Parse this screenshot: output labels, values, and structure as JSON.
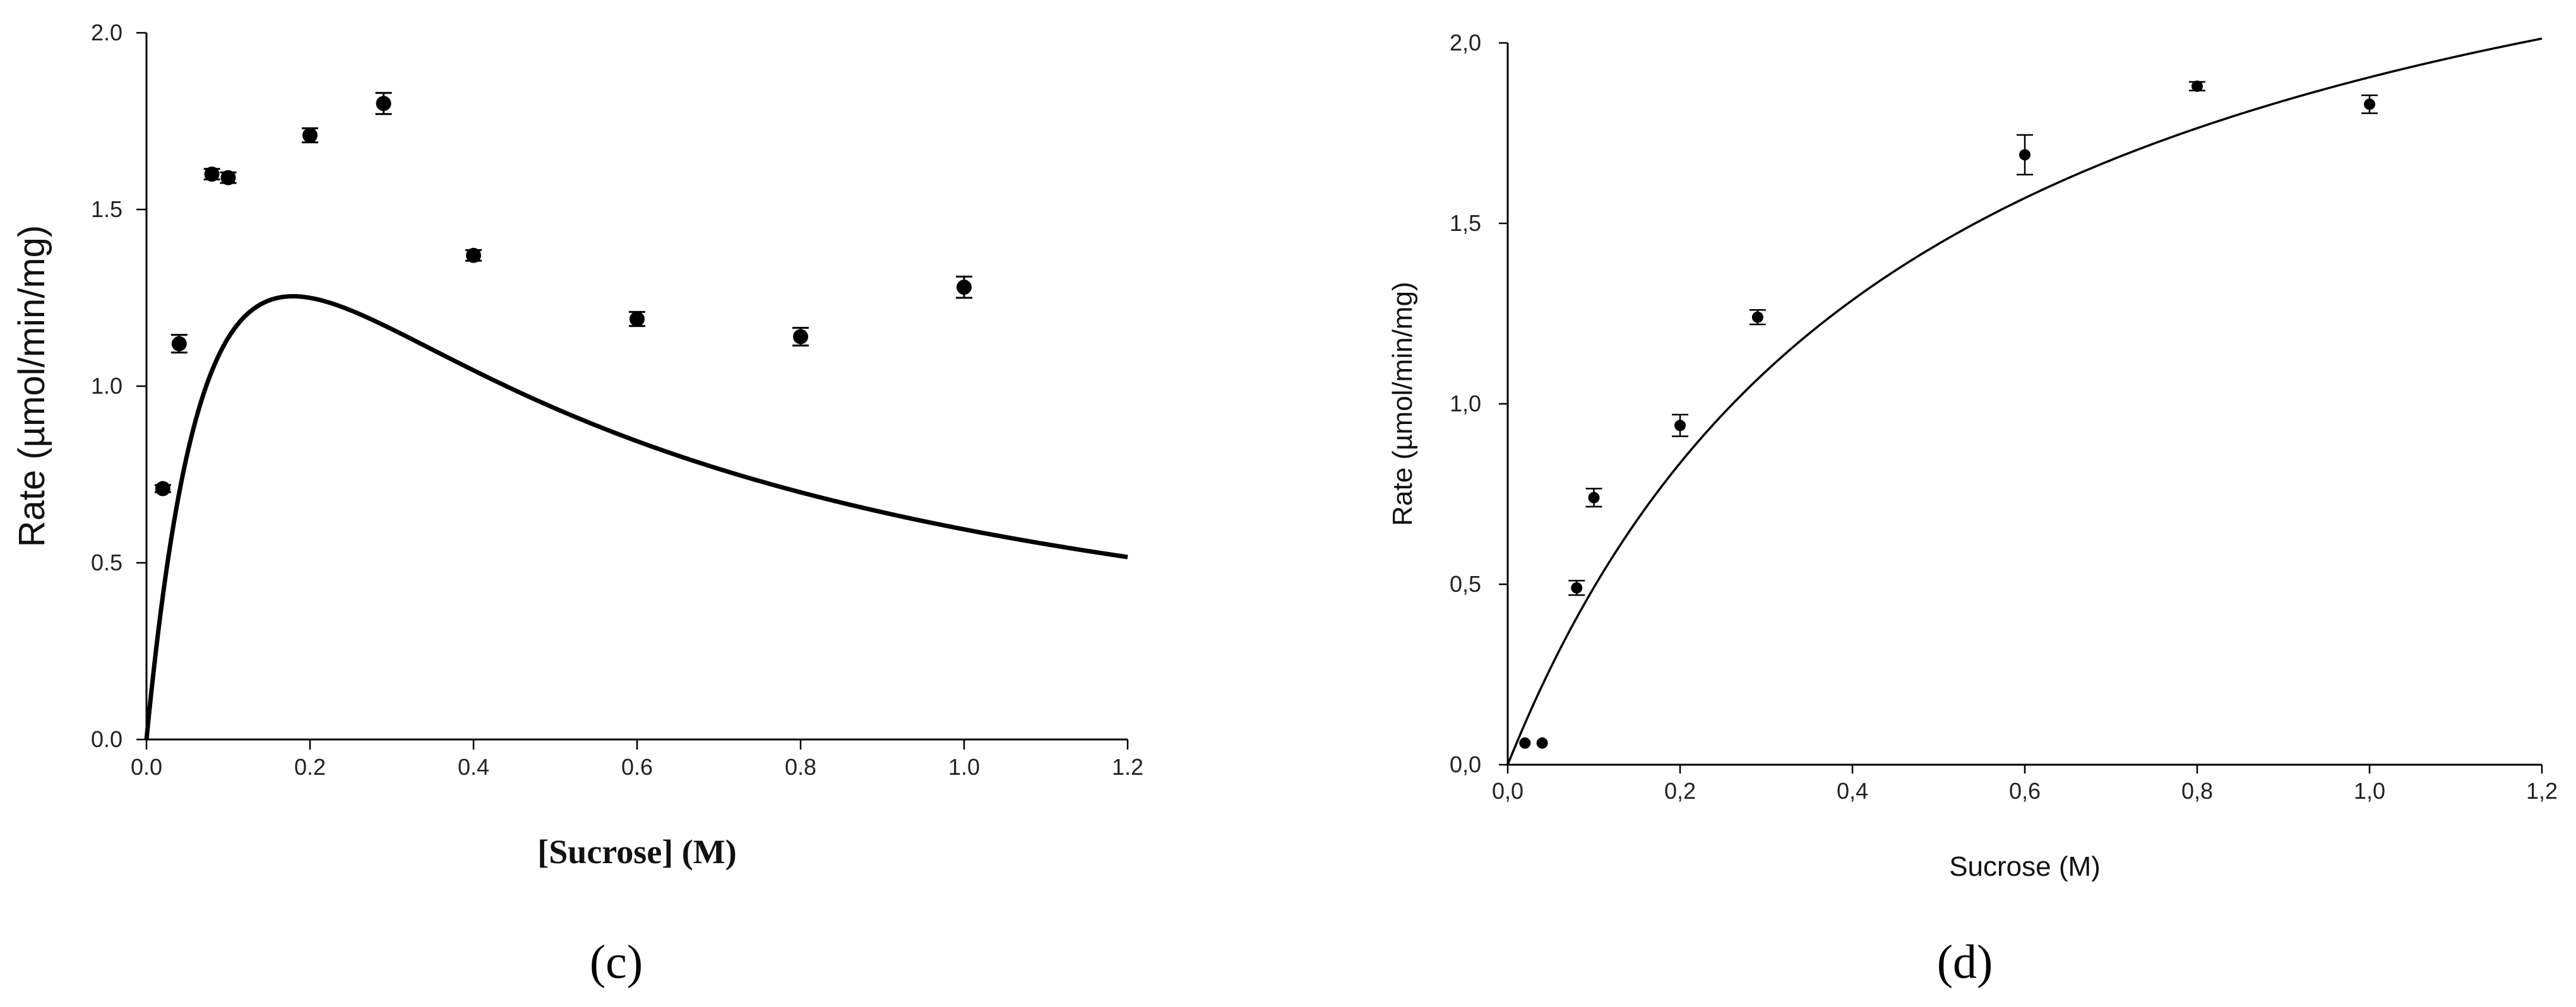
{
  "chart_data": [
    {
      "type": "scatter",
      "panel_label": "(c)",
      "xlabel": "[Sucrose] (M)",
      "ylabel": "Rate (µmol/min/mg)",
      "xlim": [
        0,
        1.2
      ],
      "ylim": [
        0,
        2.0
      ],
      "x_ticks": [
        "0.0",
        "0.2",
        "0.4",
        "0.6",
        "0.8",
        "1.0",
        "1.2"
      ],
      "y_ticks": [
        "0.0",
        "0.5",
        "1.0",
        "1.5",
        "2.0"
      ],
      "grid": false,
      "points": [
        {
          "x": 0.02,
          "y": 0.71,
          "err": 0.01
        },
        {
          "x": 0.04,
          "y": 1.12,
          "err": 0.025
        },
        {
          "x": 0.08,
          "y": 1.6,
          "err": 0.015
        },
        {
          "x": 0.1,
          "y": 1.59,
          "err": 0.015
        },
        {
          "x": 0.2,
          "y": 1.71,
          "err": 0.02
        },
        {
          "x": 0.29,
          "y": 1.8,
          "err": 0.03
        },
        {
          "x": 0.4,
          "y": 1.37,
          "err": 0.015
        },
        {
          "x": 0.6,
          "y": 1.19,
          "err": 0.02
        },
        {
          "x": 0.8,
          "y": 1.14,
          "err": 0.025
        },
        {
          "x": 1.0,
          "y": 1.28,
          "err": 0.03
        }
      ],
      "fit_curve": {
        "model": "substrate_inhibition",
        "vmax": 3.06,
        "km": 0.129,
        "ki": 0.249
      }
    },
    {
      "type": "scatter",
      "panel_label": "(d)",
      "xlabel": "Sucrose (M)",
      "ylabel": "Rate (µmol/min/mg)",
      "xlim": [
        0,
        1.2
      ],
      "ylim": [
        0,
        2.0
      ],
      "x_ticks": [
        "0,0",
        "0,2",
        "0,4",
        "0,6",
        "0,8",
        "1,0",
        "1,2"
      ],
      "y_ticks": [
        "0,0",
        "0,5",
        "1,0",
        "1,5",
        "2,0"
      ],
      "grid": false,
      "points": [
        {
          "x": 0.02,
          "y": 0.06,
          "err": 0.0
        },
        {
          "x": 0.04,
          "y": 0.06,
          "err": 0.0
        },
        {
          "x": 0.08,
          "y": 0.49,
          "err": 0.02
        },
        {
          "x": 0.1,
          "y": 0.74,
          "err": 0.025
        },
        {
          "x": 0.2,
          "y": 0.94,
          "err": 0.03
        },
        {
          "x": 0.29,
          "y": 1.24,
          "err": 0.02
        },
        {
          "x": 0.6,
          "y": 1.69,
          "err": 0.055
        },
        {
          "x": 0.8,
          "y": 1.88,
          "err": 0.012
        },
        {
          "x": 1.0,
          "y": 1.83,
          "err": 0.025
        }
      ],
      "fit_curve": {
        "model": "michaelis_menten",
        "vmax": 2.8,
        "km": 0.47
      }
    }
  ]
}
